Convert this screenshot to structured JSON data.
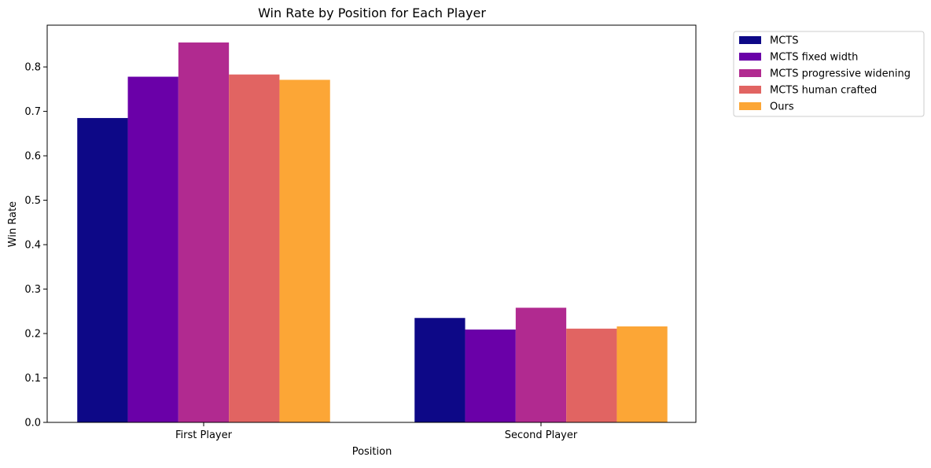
{
  "chart_data": {
    "type": "bar",
    "title": "Win Rate by Position for Each Player",
    "xlabel": "Position",
    "ylabel": "Win Rate",
    "categories": [
      "First Player",
      "Second Player"
    ],
    "ylim": [
      0,
      0.894
    ],
    "yticks": [
      "0.0",
      "0.1",
      "0.2",
      "0.3",
      "0.4",
      "0.5",
      "0.6",
      "0.7",
      "0.8"
    ],
    "grid": false,
    "legend_position": "outside-top-right",
    "series": [
      {
        "name": "MCTS",
        "color": "#0d0887",
        "values": [
          0.685,
          0.235
        ]
      },
      {
        "name": "MCTS fixed width",
        "color": "#6a00a8",
        "values": [
          0.778,
          0.209
        ]
      },
      {
        "name": "MCTS progressive widening",
        "color": "#b12a90",
        "values": [
          0.855,
          0.258
        ]
      },
      {
        "name": "MCTS human crafted",
        "color": "#e16462",
        "values": [
          0.783,
          0.211
        ]
      },
      {
        "name": "Ours",
        "color": "#fca636",
        "values": [
          0.771,
          0.216
        ]
      }
    ]
  }
}
